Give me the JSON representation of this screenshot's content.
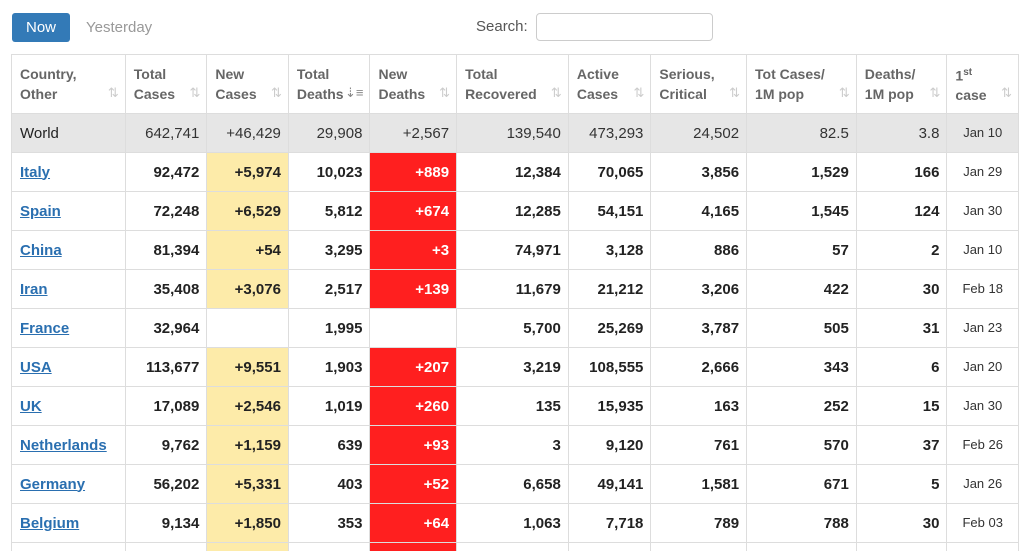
{
  "tabs": {
    "now": "Now",
    "yesterday": "Yesterday"
  },
  "search": {
    "label": "Search:",
    "value": "",
    "placeholder": ""
  },
  "colors": {
    "accent": "#337ab7",
    "new_cases_bg": "#fdeba9",
    "new_deaths_bg": "#ff1f1f",
    "world_row_bg": "#e6e6e6",
    "link": "#2a6fb0"
  },
  "headers": [
    {
      "line1": "Country,",
      "line2": "Other"
    },
    {
      "line1": "Total",
      "line2": "Cases"
    },
    {
      "line1": "New",
      "line2": "Cases"
    },
    {
      "line1": "Total",
      "line2": "Deaths"
    },
    {
      "line1": "New",
      "line2": "Deaths"
    },
    {
      "line1": "Total",
      "line2": "Recovered"
    },
    {
      "line1": "Active",
      "line2": "Cases"
    },
    {
      "line1": "Serious,",
      "line2": "Critical"
    },
    {
      "line1": "Tot Cases/",
      "line2": "1M pop"
    },
    {
      "line1": "Deaths/",
      "line2": "1M pop"
    },
    {
      "line1": "1",
      "sup": "st",
      "line2": "case"
    }
  ],
  "sort_icons": {
    "inactive": "sort-icon",
    "active": "sort-desc-icon",
    "active_column": "total_deaths"
  },
  "world": {
    "country": "World",
    "total_cases": "642,741",
    "new_cases": "+46,429",
    "total_deaths": "29,908",
    "new_deaths": "+2,567",
    "total_recovered": "139,540",
    "active_cases": "473,293",
    "serious_critical": "24,502",
    "cases_per_1m": "82.5",
    "deaths_per_1m": "3.8",
    "first_case": "Jan 10"
  },
  "rows": [
    {
      "country": "Italy",
      "total_cases": "92,472",
      "new_cases": "+5,974",
      "total_deaths": "10,023",
      "new_deaths": "+889",
      "total_recovered": "12,384",
      "active_cases": "70,065",
      "serious_critical": "3,856",
      "cases_per_1m": "1,529",
      "deaths_per_1m": "166",
      "first_case": "Jan 29"
    },
    {
      "country": "Spain",
      "total_cases": "72,248",
      "new_cases": "+6,529",
      "total_deaths": "5,812",
      "new_deaths": "+674",
      "total_recovered": "12,285",
      "active_cases": "54,151",
      "serious_critical": "4,165",
      "cases_per_1m": "1,545",
      "deaths_per_1m": "124",
      "first_case": "Jan 30"
    },
    {
      "country": "China",
      "total_cases": "81,394",
      "new_cases": "+54",
      "total_deaths": "3,295",
      "new_deaths": "+3",
      "total_recovered": "74,971",
      "active_cases": "3,128",
      "serious_critical": "886",
      "cases_per_1m": "57",
      "deaths_per_1m": "2",
      "first_case": "Jan 10"
    },
    {
      "country": "Iran",
      "total_cases": "35,408",
      "new_cases": "+3,076",
      "total_deaths": "2,517",
      "new_deaths": "+139",
      "total_recovered": "11,679",
      "active_cases": "21,212",
      "serious_critical": "3,206",
      "cases_per_1m": "422",
      "deaths_per_1m": "30",
      "first_case": "Feb 18"
    },
    {
      "country": "France",
      "total_cases": "32,964",
      "new_cases": "",
      "total_deaths": "1,995",
      "new_deaths": "",
      "total_recovered": "5,700",
      "active_cases": "25,269",
      "serious_critical": "3,787",
      "cases_per_1m": "505",
      "deaths_per_1m": "31",
      "first_case": "Jan 23"
    },
    {
      "country": "USA",
      "total_cases": "113,677",
      "new_cases": "+9,551",
      "total_deaths": "1,903",
      "new_deaths": "+207",
      "total_recovered": "3,219",
      "active_cases": "108,555",
      "serious_critical": "2,666",
      "cases_per_1m": "343",
      "deaths_per_1m": "6",
      "first_case": "Jan 20"
    },
    {
      "country": "UK",
      "total_cases": "17,089",
      "new_cases": "+2,546",
      "total_deaths": "1,019",
      "new_deaths": "+260",
      "total_recovered": "135",
      "active_cases": "15,935",
      "serious_critical": "163",
      "cases_per_1m": "252",
      "deaths_per_1m": "15",
      "first_case": "Jan 30"
    },
    {
      "country": "Netherlands",
      "total_cases": "9,762",
      "new_cases": "+1,159",
      "total_deaths": "639",
      "new_deaths": "+93",
      "total_recovered": "3",
      "active_cases": "9,120",
      "serious_critical": "761",
      "cases_per_1m": "570",
      "deaths_per_1m": "37",
      "first_case": "Feb 26"
    },
    {
      "country": "Germany",
      "total_cases": "56,202",
      "new_cases": "+5,331",
      "total_deaths": "403",
      "new_deaths": "+52",
      "total_recovered": "6,658",
      "active_cases": "49,141",
      "serious_critical": "1,581",
      "cases_per_1m": "671",
      "deaths_per_1m": "5",
      "first_case": "Jan 26"
    },
    {
      "country": "Belgium",
      "total_cases": "9,134",
      "new_cases": "+1,850",
      "total_deaths": "353",
      "new_deaths": "+64",
      "total_recovered": "1,063",
      "active_cases": "7,718",
      "serious_critical": "789",
      "cases_per_1m": "788",
      "deaths_per_1m": "30",
      "first_case": "Feb 03"
    }
  ]
}
